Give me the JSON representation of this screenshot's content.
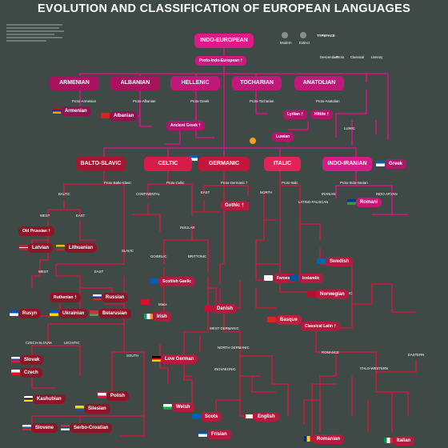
{
  "title": "EVOLUTION AND CLASSIFICATION OF EUROPEAN LANGUAGES",
  "colors": {
    "background": "#3f4a47",
    "indo_european": "#e0188a",
    "anatolian_branch": "#c0166e",
    "celtic_italic": "#d81c4a",
    "balto_slavic": "#a31830",
    "germanic": "#c2173a",
    "indo_iranian": "#c81876",
    "line_magenta": "#d0177f",
    "line_red": "#c21d3c"
  },
  "root": {
    "family": "INDO-EUROPEAN",
    "proto": "Proto-Indo-European †"
  },
  "legend": {
    "heading": "TYPEFACE",
    "items": [
      "Modern",
      "Extinct",
      "Descendant",
      "Proto",
      "Classical",
      "Literary"
    ]
  },
  "branches_top": [
    "ARMENIAN",
    "ALBANIAN",
    "HELLENIC",
    "TOCHARIAN",
    "ANATOLIAN"
  ],
  "branches_mid": [
    "BALTO-SLAVIC",
    "CELTIC",
    "GERMANIC",
    "ITALIC",
    "INDO-IRANIAN"
  ],
  "languages": {
    "armenian": "Armenian",
    "albanian": "Albanian",
    "greek": "Greek",
    "lithuanian": "Lithuanian",
    "latvian": "Latvian",
    "old_prussian": "Old Prussian †",
    "russian": "Russian",
    "ukrainian": "Ukrainian",
    "belarusian": "Belarusian",
    "rusyn": "Rusyn",
    "ruthenian": "Ruthenian †",
    "slovak": "Slovak",
    "czech": "Czech",
    "kashubian": "Kashubian",
    "polish": "Polish",
    "silesian": "Silesian",
    "slovene": "Slovene",
    "serbo_croatian": "Serbo-Croatian",
    "scottish_gaelic": "Scottish Gaelic",
    "irish": "Irish",
    "manx": "Manx",
    "welsh": "Welsh",
    "scots": "Scots",
    "english": "English",
    "frisian": "Frisian",
    "danish": "Danish",
    "swedish": "Swedish",
    "icelandic": "Icelandic",
    "faroese": "Faroese",
    "norwegian": "Norwegian",
    "gothic": "Gothic †",
    "low_german": "Low German",
    "basque": "Basque",
    "romani": "Romani",
    "italian": "Italian",
    "romanian": "Romanian",
    "lydian": "Lydian †",
    "hittite": "Hittite †",
    "luwian": "Luwian",
    "ancient_greek": "Ancient Greek †",
    "classical_latin": "Classical Latin †",
    "proto_balto_slavic": "Proto-Balto-Slavic",
    "proto_celtic": "Proto-Celtic",
    "proto_germanic": "Proto-Germanic †",
    "proto_italic": "Proto-Italic",
    "proto_indo_iranian": "Proto-Indo-Iranian",
    "proto_armenian": "Proto-Armenian",
    "proto_albanian": "Proto-Albanian",
    "proto_greek": "Proto-Greek",
    "proto_tocharian": "Proto-Tocharian",
    "proto_anatolian": "Proto-Anatolian"
  },
  "subgroups": {
    "east": "EAST",
    "west": "WEST",
    "south": "SOUTH",
    "north": "NORTH",
    "baltic": "BALTIC",
    "slavic": "SLAVIC",
    "continental": "CONTINENTAL",
    "insular": "INSULAR",
    "goidelic": "GOIDELIC",
    "brittonic": "BRITTONIC",
    "west_germanic": "WEST GERMANIC",
    "north_germanic": "NORTH GERMANIC",
    "latino_faliscan": "LATINO-FALISCAN",
    "sabellic": "SABELLIC",
    "romance": "ROMANCE",
    "iranian": "IRANIAN",
    "indo_aryan": "INDO-ARYAN",
    "luwic": "LUWIC",
    "ingvaeonic": "INGVAEONIC",
    "italo_western": "ITALO-WESTERN",
    "eastern": "EASTERN",
    "czech_slovak": "CZECH-SLOVAK",
    "lechitic": "LECHITIC"
  }
}
